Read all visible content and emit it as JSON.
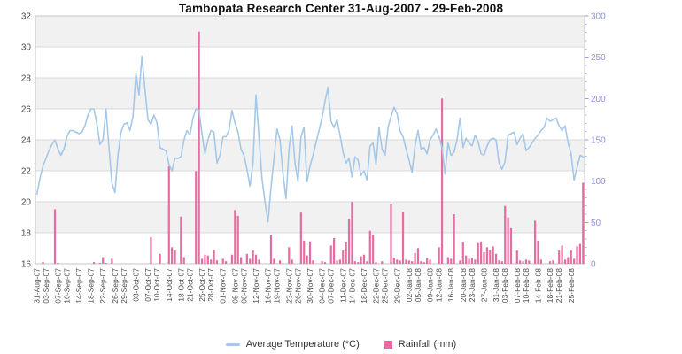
{
  "title": "Tambopata Research Center  31-Aug-2007 - 29-Feb-2008",
  "legend": {
    "items": [
      {
        "label": "Average Temperature (*C)",
        "swatch": "line",
        "color": "#a5c8e9"
      },
      {
        "label": "Rainfall (mm)",
        "swatch": "square",
        "color": "#e56da1"
      }
    ]
  },
  "colors": {
    "temperature_line": "#a5c8e9",
    "rainfall_bar": "#e56da1",
    "left_axis_labels": "#4a4a4a",
    "x_axis_labels": "#4a4a4a",
    "right_axis_labels": "#8f8fe8",
    "right_axis_ticks": "#9a9ae0",
    "right_axis_minor_ticks": "#b3b3ea",
    "gridline": "#d9d9d9",
    "plot_band": "#f1f1f1",
    "plot_border": "#c6c6c6",
    "title_text": "#111111",
    "legend_text": "#333333",
    "background": "#ffffff"
  },
  "chart_data": {
    "type": "mixed",
    "title": "Tambopata Research Center  31-Aug-2007 - 29-Feb-2008",
    "xlabel": "",
    "x_unit": "daily categories, 31-Aug-2007 through 29-Feb-2008 (183 days)",
    "grid": "horizontal gridlines with alternating shaded bands every 2 degC (18-20, 22-24, 26-28, 30-32)",
    "legend_position": "bottom center",
    "x_tick_labels": [
      "31-Aug-07",
      "03-Sep-07",
      "07-Sep-07",
      "10-Sep-07",
      "14-Sep-07",
      "18-Sep-07",
      "22-Sep-07",
      "26-Sep-07",
      "29-Sep-07",
      "03-Oct-07",
      "07-Oct-07",
      "10-Oct-07",
      "14-Oct-07",
      "18-Oct-07",
      "21-Oct-07",
      "25-Oct-07",
      "28-Oct-07",
      "01-Nov-07",
      "05-Nov-07",
      "08-Nov-07",
      "12-Nov-07",
      "16-Nov-07",
      "19-Nov-07",
      "23-Nov-07",
      "26-Nov-07",
      "30-Nov-07",
      "04-Dec-07",
      "07-Dec-07",
      "11-Dec-07",
      "14-Dec-07",
      "18-Dec-07",
      "22-Dec-07",
      "25-Dec-07",
      "29-Dec-07",
      "02-Jan-08",
      "05-Jan-08",
      "09-Jan-08",
      "12-Jan-08",
      "16-Jan-08",
      "20-Jan-08",
      "23-Jan-08",
      "27-Jan-08",
      "31-Jan-08",
      "03-Feb-08",
      "07-Feb-08",
      "10-Feb-08",
      "14-Feb-08",
      "18-Feb-08",
      "21-Feb-08",
      "25-Feb-08"
    ],
    "x_tick_day_index": [
      0,
      3,
      7,
      10,
      14,
      18,
      22,
      26,
      29,
      33,
      37,
      40,
      44,
      48,
      51,
      55,
      58,
      62,
      66,
      69,
      73,
      77,
      80,
      84,
      87,
      91,
      95,
      98,
      102,
      105,
      109,
      113,
      116,
      120,
      124,
      127,
      131,
      134,
      138,
      142,
      145,
      149,
      153,
      156,
      160,
      163,
      167,
      171,
      174,
      178
    ],
    "y_left": {
      "title": "Average Temperature (*C)",
      "min": 16,
      "max": 32,
      "ticks": [
        32,
        30,
        28,
        26,
        24,
        22,
        20,
        18,
        16
      ]
    },
    "y_right": {
      "title": "Rainfall (mm)",
      "min": 0,
      "max": 300,
      "ticks": [
        300,
        250,
        200,
        150,
        100,
        50,
        0
      ],
      "minor_tick_step": 10
    },
    "series": [
      {
        "name": "Average Temperature (*C)",
        "type": "line",
        "axis": "left",
        "color": "#a5c8e9",
        "values": [
          20.5,
          21.5,
          22.3,
          22.8,
          23.3,
          23.7,
          24.0,
          23.4,
          23.0,
          23.4,
          24.2,
          24.6,
          24.6,
          24.5,
          24.4,
          24.5,
          24.9,
          25.6,
          26.0,
          26.0,
          25.0,
          23.7,
          24.0,
          26.0,
          23.5,
          21.2,
          20.6,
          23.0,
          24.5,
          25.0,
          25.1,
          24.6,
          25.5,
          28.3,
          26.9,
          29.4,
          27.3,
          25.3,
          25.0,
          25.6,
          25.1,
          23.5,
          23.4,
          23.3,
          22.4,
          22.0,
          22.8,
          22.8,
          22.9,
          24.0,
          24.6,
          24.3,
          25.4,
          26.0,
          25.9,
          24.4,
          23.1,
          24.0,
          24.6,
          24.5,
          22.5,
          23.0,
          24.2,
          24.2,
          24.6,
          25.9,
          25.1,
          24.5,
          23.4,
          23.0,
          22.1,
          21.0,
          22.5,
          26.9,
          24.2,
          21.5,
          20.0,
          18.7,
          20.9,
          22.8,
          24.7,
          24.0,
          21.8,
          20.2,
          23.4,
          24.9,
          22.5,
          21.3,
          24.2,
          24.8,
          21.3,
          22.3,
          23.0,
          23.8,
          24.6,
          25.4,
          26.5,
          27.4,
          25.2,
          24.8,
          25.3,
          24.3,
          23.2,
          22.5,
          22.8,
          21.6,
          22.9,
          22.7,
          21.7,
          22.0,
          21.4,
          23.6,
          23.8,
          22.4,
          24.8,
          23.4,
          23.0,
          24.8,
          25.5,
          26.1,
          25.7,
          24.6,
          24.2,
          23.4,
          22.7,
          21.9,
          23.6,
          24.6,
          23.4,
          23.5,
          23.1,
          24.0,
          24.3,
          24.7,
          24.2,
          23.5,
          21.8,
          23.8,
          23.0,
          23.2,
          24.0,
          25.4,
          23.5,
          24.1,
          23.8,
          23.6,
          24.3,
          23.9,
          23.1,
          23.0,
          23.6,
          24.0,
          24.1,
          24.0,
          22.5,
          22.1,
          22.6,
          24.3,
          24.4,
          24.5,
          23.7,
          24.1,
          24.4,
          23.3,
          23.5,
          23.8,
          24.1,
          24.3,
          24.6,
          24.8,
          25.4,
          25.2,
          25.3,
          25.4,
          24.9,
          24.6,
          24.9,
          23.8,
          23.1,
          21.4,
          22.2,
          23.0,
          22.9
        ]
      },
      {
        "name": "Rainfall (mm)",
        "type": "bar",
        "axis": "right",
        "color": "#e56da1",
        "values_by_day_index": {
          "2": 2,
          "6": 66,
          "7": 1,
          "19": 2,
          "21": 1,
          "22": 8,
          "23": 1,
          "25": 6,
          "38": 32,
          "41": 12,
          "44": 118,
          "45": 20,
          "46": 16,
          "48": 57,
          "49": 8,
          "53": 112,
          "54": 281,
          "55": 6,
          "56": 11,
          "57": 10,
          "58": 5,
          "59": 17,
          "60": 4,
          "62": 6,
          "63": 3,
          "65": 11,
          "66": 65,
          "67": 58,
          "68": 8,
          "70": 12,
          "71": 6,
          "72": 16,
          "73": 11,
          "74": 5,
          "78": 35,
          "79": 6,
          "81": 4,
          "84": 20,
          "85": 5,
          "88": 62,
          "89": 28,
          "90": 10,
          "91": 27,
          "92": 4,
          "95": 3,
          "96": 2,
          "98": 22,
          "99": 31,
          "100": 4,
          "101": 5,
          "102": 16,
          "103": 26,
          "104": 54,
          "105": 75,
          "106": 3,
          "107": 2,
          "108": 9,
          "109": 11,
          "110": 3,
          "111": 40,
          "112": 35,
          "113": 2,
          "115": 3,
          "118": 72,
          "119": 7,
          "120": 5,
          "121": 4,
          "122": 63,
          "123": 5,
          "124": 4,
          "125": 3,
          "126": 13,
          "127": 19,
          "128": 3,
          "129": 2,
          "130": 7,
          "131": 5,
          "134": 20,
          "135": 200,
          "137": 8,
          "138": 6,
          "139": 60,
          "141": 4,
          "142": 26,
          "143": 10,
          "144": 6,
          "145": 7,
          "146": 5,
          "147": 25,
          "148": 27,
          "149": 14,
          "150": 20,
          "151": 16,
          "152": 21,
          "153": 12,
          "154": 4,
          "155": 3,
          "156": 70,
          "157": 56,
          "158": 43,
          "160": 16,
          "161": 4,
          "162": 3,
          "163": 5,
          "164": 4,
          "166": 52,
          "167": 28,
          "168": 5,
          "171": 3,
          "172": 4,
          "174": 16,
          "175": 22,
          "176": 5,
          "177": 8,
          "178": 16,
          "179": 6,
          "180": 21,
          "181": 24,
          "182": 98
        }
      }
    ]
  }
}
